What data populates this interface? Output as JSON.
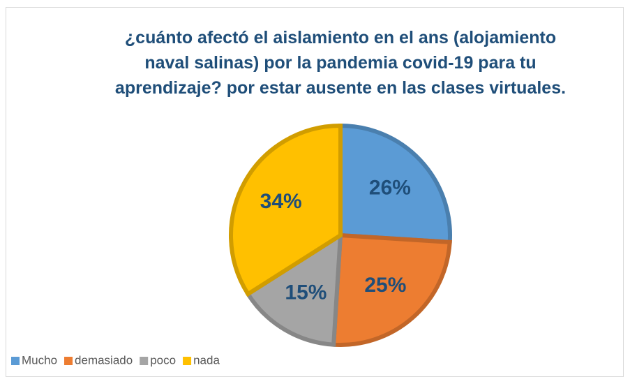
{
  "chart_data": {
    "type": "pie",
    "title": "¿cuánto afectó el aislamiento en el ans (alojamiento naval salinas) por la pandemia covid-19 para tu aprendizaje? por estar ausente en las clases virtuales.",
    "categories": [
      "Mucho",
      "demasiado",
      "poco",
      "nada"
    ],
    "values": [
      26,
      25,
      15,
      34
    ],
    "value_labels": [
      "26%",
      "25%",
      "15%",
      "34%"
    ],
    "colors": [
      "#5b9bd5",
      "#ed7d31",
      "#a5a5a5",
      "#ffc000"
    ],
    "legend": "bottom-left"
  }
}
